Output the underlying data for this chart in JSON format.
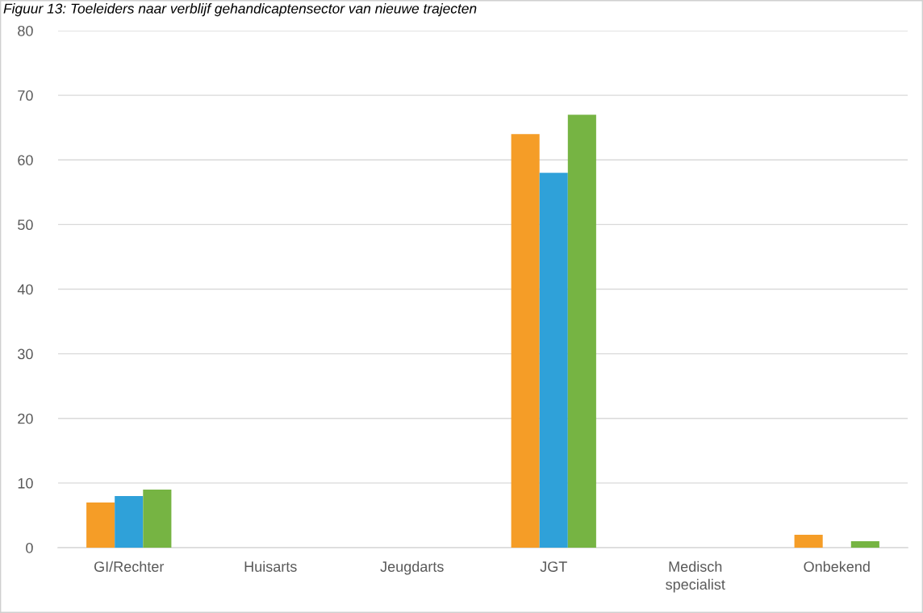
{
  "chart_data": {
    "type": "bar",
    "title": "Figuur 13: Toeleiders naar verblijf gehandicaptensector van nieuwe trajecten",
    "categories": [
      "GI/Rechter",
      "Huisarts",
      "Jeugdarts",
      "JGT",
      "Medisch\nspecialist",
      "Onbekend"
    ],
    "series": [
      {
        "color": "#f59d27",
        "values": [
          7,
          0,
          0,
          64,
          0,
          2
        ]
      },
      {
        "color": "#2fa1d9",
        "values": [
          8,
          0,
          0,
          58,
          0,
          0
        ]
      },
      {
        "color": "#76b443",
        "values": [
          9,
          0,
          0,
          67,
          0,
          1
        ]
      }
    ],
    "ylim": [
      0,
      80
    ],
    "yticks": [
      0,
      10,
      20,
      30,
      40,
      50,
      60,
      70,
      80
    ],
    "grid": "y"
  }
}
